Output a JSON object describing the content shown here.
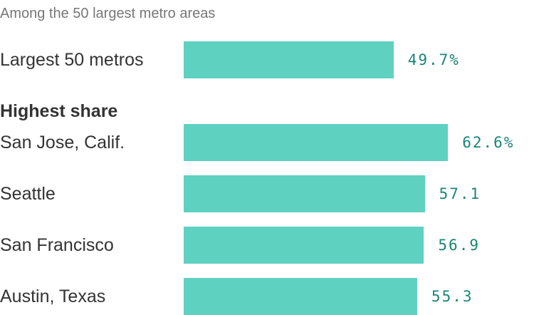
{
  "subtitle": "Among the 50 largest metro areas",
  "colors": {
    "bar": "#5fd1c1",
    "value_label": "#1a8577"
  },
  "chart_data": {
    "type": "bar",
    "orientation": "horizontal",
    "subtitle": "Among the 50 largest metro areas",
    "group_label": "Highest share",
    "categories": [
      "Largest 50 metros",
      "San Jose, Calif.",
      "Seattle",
      "San Francisco",
      "Austin, Texas"
    ],
    "values": [
      49.7,
      62.6,
      57.1,
      56.9,
      55.3
    ],
    "value_labels": [
      "49.7%",
      "62.6%",
      "57.1",
      "56.9",
      "55.3"
    ],
    "xlim": [
      0,
      64
    ]
  }
}
